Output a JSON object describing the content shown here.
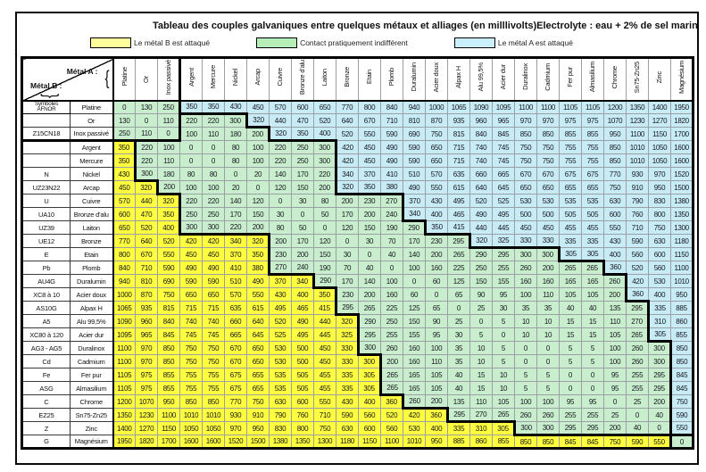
{
  "title": "Tableau des couples galvaniques entre quelques métaux et alliages (en milllivolts)",
  "electrolyte": "Electrolyte : eau + 2% de sel marin",
  "legend": [
    {
      "label": "Le métal B est attaqué",
      "color": "#ffff9c"
    },
    {
      "label": "Contact pratiquement indifférent",
      "color": "#b5efb7"
    },
    {
      "label": "Le métal A est attaqué",
      "color": "#c9f0fa"
    }
  ],
  "corner": {
    "metal_a": "Métal A :",
    "metal_b": "Métal B :",
    "symbols_line1": "Symboles",
    "symbols_line2": "AFNOR"
  },
  "colors": {
    "y": "#ffff3f",
    "g": "#c8eecd",
    "b": "#c7ecf6"
  },
  "rules": {
    "green_threshold": 300
  },
  "color_exceptions": [
    {
      "row": "Cadmium",
      "col": "Etain",
      "zone": "y"
    }
  ],
  "metals": [
    {
      "symbol": "",
      "name": "Platine"
    },
    {
      "symbol": "",
      "name": "Or"
    },
    {
      "symbol": "Z15CN18",
      "name": "Inox passivé"
    },
    {
      "symbol": "",
      "name": "Argent"
    },
    {
      "symbol": "",
      "name": "Mercure"
    },
    {
      "symbol": "N",
      "name": "Nickel"
    },
    {
      "symbol": "UZ23N22",
      "name": "Arcap"
    },
    {
      "symbol": "U",
      "name": "Cuivre"
    },
    {
      "symbol": "UA10",
      "name": "Bronze d'alu"
    },
    {
      "symbol": "UZ39",
      "name": "Laiton"
    },
    {
      "symbol": "UE12",
      "name": "Bronze"
    },
    {
      "symbol": "E",
      "name": "Etain"
    },
    {
      "symbol": "Pb",
      "name": "Plomb"
    },
    {
      "symbol": "AU4G",
      "name": "Duralumin"
    },
    {
      "symbol": "XC8 à 10",
      "name": "Acier doux"
    },
    {
      "symbol": "AS10G",
      "name": "Alpax H"
    },
    {
      "symbol": "A5",
      "name": "Alu 99,5%"
    },
    {
      "symbol": "XC80 à 120",
      "name": "Acier dur"
    },
    {
      "symbol": "AG3 - AG5",
      "name": "Duralinox"
    },
    {
      "symbol": "Cd",
      "name": "Cadmium"
    },
    {
      "symbol": "Fe",
      "name": "Fer pur"
    },
    {
      "symbol": "ASG",
      "name": "Almasilium"
    },
    {
      "symbol": "C",
      "name": "Chrome"
    },
    {
      "symbol": "EZ25",
      "name": "Sn75-Zn25"
    },
    {
      "symbol": "Z",
      "name": "Zinc"
    },
    {
      "symbol": "G",
      "name": "Magnésium"
    }
  ],
  "matrix": [
    [
      0,
      130,
      250,
      350,
      350,
      430,
      450,
      570,
      600,
      650,
      770,
      800,
      840,
      940,
      1000,
      1065,
      1090,
      1095,
      1100,
      1100,
      1105,
      1105,
      1200,
      1350,
      1400,
      1950
    ],
    [
      130,
      0,
      110,
      220,
      220,
      300,
      320,
      440,
      470,
      520,
      640,
      670,
      710,
      810,
      870,
      935,
      960,
      965,
      970,
      970,
      975,
      975,
      1070,
      1230,
      1270,
      1820
    ],
    [
      250,
      110,
      0,
      100,
      110,
      180,
      200,
      320,
      350,
      400,
      520,
      550,
      590,
      690,
      750,
      815,
      840,
      845,
      850,
      850,
      855,
      855,
      950,
      1100,
      1150,
      1700
    ],
    [
      350,
      220,
      100,
      0,
      0,
      80,
      100,
      220,
      250,
      300,
      420,
      450,
      490,
      590,
      650,
      715,
      740,
      745,
      750,
      750,
      755,
      755,
      850,
      1010,
      1050,
      1600
    ],
    [
      350,
      220,
      110,
      0,
      0,
      80,
      100,
      220,
      250,
      300,
      420,
      450,
      490,
      590,
      650,
      715,
      740,
      745,
      750,
      750,
      755,
      755,
      850,
      1010,
      1050,
      1600
    ],
    [
      430,
      300,
      180,
      80,
      80,
      0,
      20,
      140,
      170,
      220,
      340,
      370,
      410,
      510,
      570,
      635,
      660,
      665,
      670,
      670,
      675,
      675,
      770,
      930,
      970,
      1520
    ],
    [
      450,
      320,
      200,
      100,
      100,
      20,
      0,
      120,
      150,
      200,
      320,
      350,
      380,
      490,
      550,
      615,
      640,
      645,
      650,
      650,
      655,
      655,
      750,
      910,
      950,
      1500
    ],
    [
      570,
      440,
      320,
      220,
      220,
      140,
      120,
      0,
      30,
      80,
      200,
      230,
      270,
      370,
      430,
      495,
      520,
      525,
      530,
      530,
      535,
      535,
      630,
      790,
      830,
      1380
    ],
    [
      600,
      470,
      350,
      250,
      250,
      170,
      150,
      30,
      0,
      50,
      170,
      200,
      240,
      340,
      400,
      465,
      490,
      495,
      500,
      500,
      505,
      505,
      600,
      760,
      800,
      1350
    ],
    [
      650,
      520,
      400,
      300,
      300,
      220,
      200,
      80,
      50,
      0,
      120,
      150,
      190,
      290,
      350,
      415,
      440,
      445,
      450,
      450,
      455,
      455,
      550,
      710,
      750,
      1300
    ],
    [
      770,
      640,
      520,
      420,
      420,
      340,
      320,
      200,
      170,
      120,
      0,
      30,
      70,
      170,
      230,
      295,
      320,
      325,
      330,
      330,
      335,
      335,
      430,
      590,
      630,
      1180
    ],
    [
      800,
      670,
      550,
      450,
      450,
      370,
      350,
      230,
      200,
      150,
      30,
      0,
      40,
      140,
      200,
      265,
      290,
      295,
      300,
      300,
      305,
      305,
      400,
      560,
      600,
      1150
    ],
    [
      840,
      710,
      590,
      490,
      490,
      410,
      380,
      270,
      240,
      190,
      70,
      40,
      0,
      100,
      160,
      225,
      250,
      255,
      260,
      200,
      265,
      265,
      360,
      520,
      560,
      1100
    ],
    [
      940,
      810,
      690,
      590,
      590,
      510,
      490,
      370,
      340,
      290,
      170,
      140,
      100,
      0,
      60,
      125,
      150,
      155,
      160,
      160,
      165,
      165,
      260,
      420,
      530,
      1010
    ],
    [
      1000,
      870,
      750,
      650,
      650,
      570,
      550,
      430,
      400,
      350,
      230,
      200,
      160,
      60,
      0,
      65,
      90,
      95,
      100,
      110,
      105,
      105,
      200,
      360,
      400,
      950
    ],
    [
      1065,
      935,
      815,
      715,
      715,
      635,
      615,
      495,
      465,
      415,
      295,
      265,
      225,
      125,
      65,
      0,
      25,
      30,
      35,
      35,
      40,
      40,
      135,
      295,
      335,
      885
    ],
    [
      1090,
      960,
      840,
      740,
      740,
      660,
      640,
      520,
      490,
      440,
      320,
      290,
      250,
      150,
      90,
      25,
      0,
      5,
      10,
      10,
      15,
      15,
      110,
      270,
      310,
      860
    ],
    [
      1095,
      965,
      845,
      745,
      745,
      665,
      645,
      525,
      495,
      445,
      325,
      295,
      255,
      155,
      95,
      30,
      5,
      0,
      10,
      10,
      15,
      15,
      105,
      265,
      305,
      855
    ],
    [
      1100,
      970,
      850,
      750,
      750,
      670,
      650,
      530,
      500,
      450,
      330,
      300,
      260,
      160,
      100,
      35,
      10,
      5,
      0,
      0,
      5,
      5,
      100,
      260,
      300,
      850
    ],
    [
      1100,
      970,
      850,
      750,
      750,
      670,
      650,
      530,
      500,
      450,
      330,
      300,
      200,
      160,
      110,
      35,
      10,
      5,
      0,
      0,
      5,
      5,
      100,
      260,
      300,
      850
    ],
    [
      1105,
      975,
      855,
      755,
      755,
      675,
      655,
      535,
      505,
      455,
      335,
      305,
      265,
      165,
      105,
      40,
      15,
      10,
      5,
      5,
      0,
      0,
      95,
      255,
      295,
      845
    ],
    [
      1105,
      975,
      855,
      755,
      755,
      675,
      655,
      535,
      505,
      455,
      335,
      305,
      265,
      165,
      105,
      40,
      15,
      10,
      5,
      5,
      0,
      0,
      95,
      255,
      295,
      845
    ],
    [
      1200,
      1070,
      950,
      850,
      850,
      770,
      750,
      630,
      600,
      550,
      430,
      400,
      360,
      260,
      200,
      135,
      110,
      105,
      100,
      100,
      95,
      95,
      0,
      25,
      200,
      750
    ],
    [
      1350,
      1230,
      1100,
      1010,
      1010,
      930,
      910,
      790,
      760,
      710,
      590,
      560,
      520,
      420,
      360,
      295,
      270,
      265,
      260,
      260,
      255,
      255,
      25,
      0,
      40,
      590
    ],
    [
      1400,
      1270,
      1150,
      1050,
      1050,
      970,
      950,
      830,
      800,
      750,
      630,
      600,
      560,
      530,
      400,
      335,
      310,
      305,
      300,
      300,
      295,
      295,
      200,
      40,
      0,
      550
    ],
    [
      1950,
      1820,
      1700,
      1600,
      1600,
      1520,
      1500,
      1380,
      1350,
      1300,
      1180,
      1150,
      1100,
      1010,
      950,
      885,
      860,
      855,
      850,
      850,
      845,
      845,
      750,
      590,
      550,
      0
    ]
  ]
}
